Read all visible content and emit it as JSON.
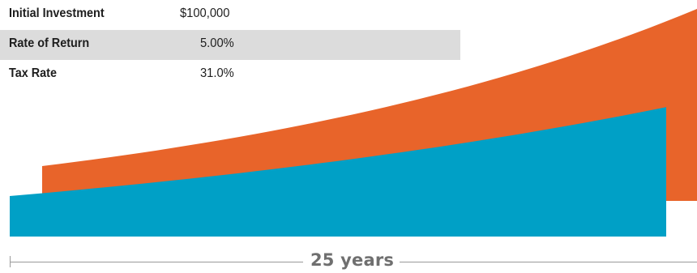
{
  "parameters": [
    {
      "label": "Initial Investment",
      "value": "$100,000"
    },
    {
      "label": "Rate of Return",
      "value": "5.00%"
    },
    {
      "label": "Tax Rate",
      "value": "31.0%"
    }
  ],
  "duration_label": "25 years",
  "colors": {
    "tax_deferred": "#e8642a",
    "taxable": "#00a0c6",
    "shaded_row": "#dcdcdc"
  },
  "chart_data": {
    "type": "area",
    "x": [
      0,
      5,
      10,
      15,
      20,
      25
    ],
    "series": [
      {
        "values": [
          100000,
          127628,
          162889,
          207893,
          265330,
          338635
        ],
        "color": "#e8642a"
      },
      {
        "values": [
          100000,
          118628,
          140729,
          166946,
          198048,
          234944
        ],
        "color": "#00a0c6"
      }
    ],
    "xlabel": "25 years",
    "ylabel": "",
    "xlim": [
      0,
      25
    ],
    "ylim": [
      0,
      338635
    ],
    "grid": false,
    "legend": "none"
  }
}
